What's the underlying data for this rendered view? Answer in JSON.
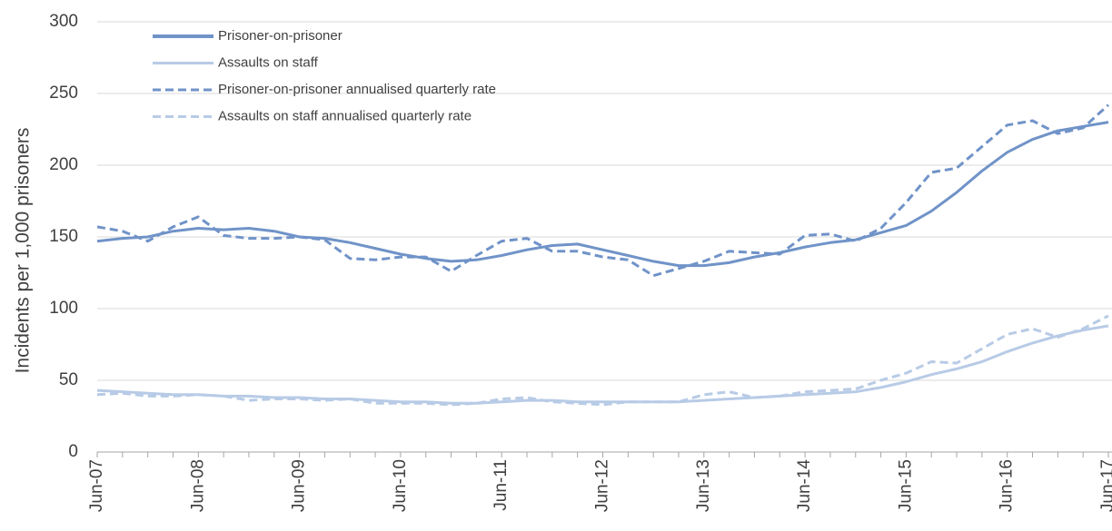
{
  "chart_data": {
    "type": "line",
    "y_label": "Incidents  per 1,000 prisoners",
    "categories": [
      "Jun-07",
      null,
      null,
      null,
      "Jun-08",
      null,
      null,
      null,
      "Jun-09",
      null,
      null,
      null,
      "Jun-10",
      null,
      null,
      null,
      "Jun-11",
      null,
      null,
      null,
      "Jun-12",
      null,
      null,
      null,
      "Jun-13",
      null,
      null,
      null,
      "Jun-14",
      null,
      null,
      null,
      "Jun-15",
      null,
      null,
      null,
      "Jun-16",
      null,
      null,
      null,
      "Jun-17"
    ],
    "series": [
      {
        "name": "Prisoner-on-prisoner",
        "color": "#7093c8",
        "dashed": false,
        "values": [
          147,
          149,
          150,
          154,
          156,
          155,
          156,
          154,
          150,
          149,
          146,
          142,
          138,
          135,
          133,
          134,
          137,
          141,
          144,
          145,
          141,
          137,
          133,
          130,
          130,
          132,
          136,
          139,
          143,
          146,
          148,
          153,
          158,
          168,
          181,
          196,
          209,
          218,
          224,
          227,
          230
        ]
      },
      {
        "name": "Assaults on staff",
        "color": "#b8cbe6",
        "dashed": false,
        "values": [
          43,
          42,
          41,
          40,
          40,
          39,
          39,
          38,
          38,
          37,
          37,
          36,
          35,
          35,
          34,
          34,
          35,
          36,
          36,
          35,
          35,
          35,
          35,
          35,
          36,
          37,
          38,
          39,
          40,
          41,
          42,
          45,
          49,
          54,
          58,
          63,
          70,
          76,
          81,
          85,
          88
        ]
      },
      {
        "name": "Prisoner-on-prisoner annualised quarterly rate",
        "color": "#7093c8",
        "dashed": true,
        "values": [
          157,
          154,
          147,
          157,
          164,
          151,
          149,
          149,
          150,
          148,
          135,
          134,
          136,
          136,
          126,
          137,
          147,
          149,
          140,
          140,
          136,
          134,
          123,
          128,
          133,
          140,
          139,
          138,
          151,
          152,
          147,
          156,
          174,
          195,
          198,
          213,
          228,
          231,
          222,
          226,
          242
        ]
      },
      {
        "name": "Assaults on staff annualised quarterly rate",
        "color": "#b8cbe6",
        "dashed": true,
        "values": [
          40,
          41,
          39,
          39,
          40,
          39,
          36,
          37,
          37,
          36,
          37,
          34,
          34,
          34,
          33,
          34,
          37,
          38,
          35,
          34,
          33,
          35,
          35,
          35,
          40,
          42,
          38,
          39,
          42,
          43,
          44,
          50,
          55,
          63,
          62,
          72,
          82,
          86,
          80,
          86,
          95
        ]
      }
    ],
    "ylim": [
      0,
      300
    ],
    "yticks": [
      0,
      50,
      100,
      150,
      200,
      250,
      300
    ],
    "grid": true,
    "legend": "top-left"
  }
}
